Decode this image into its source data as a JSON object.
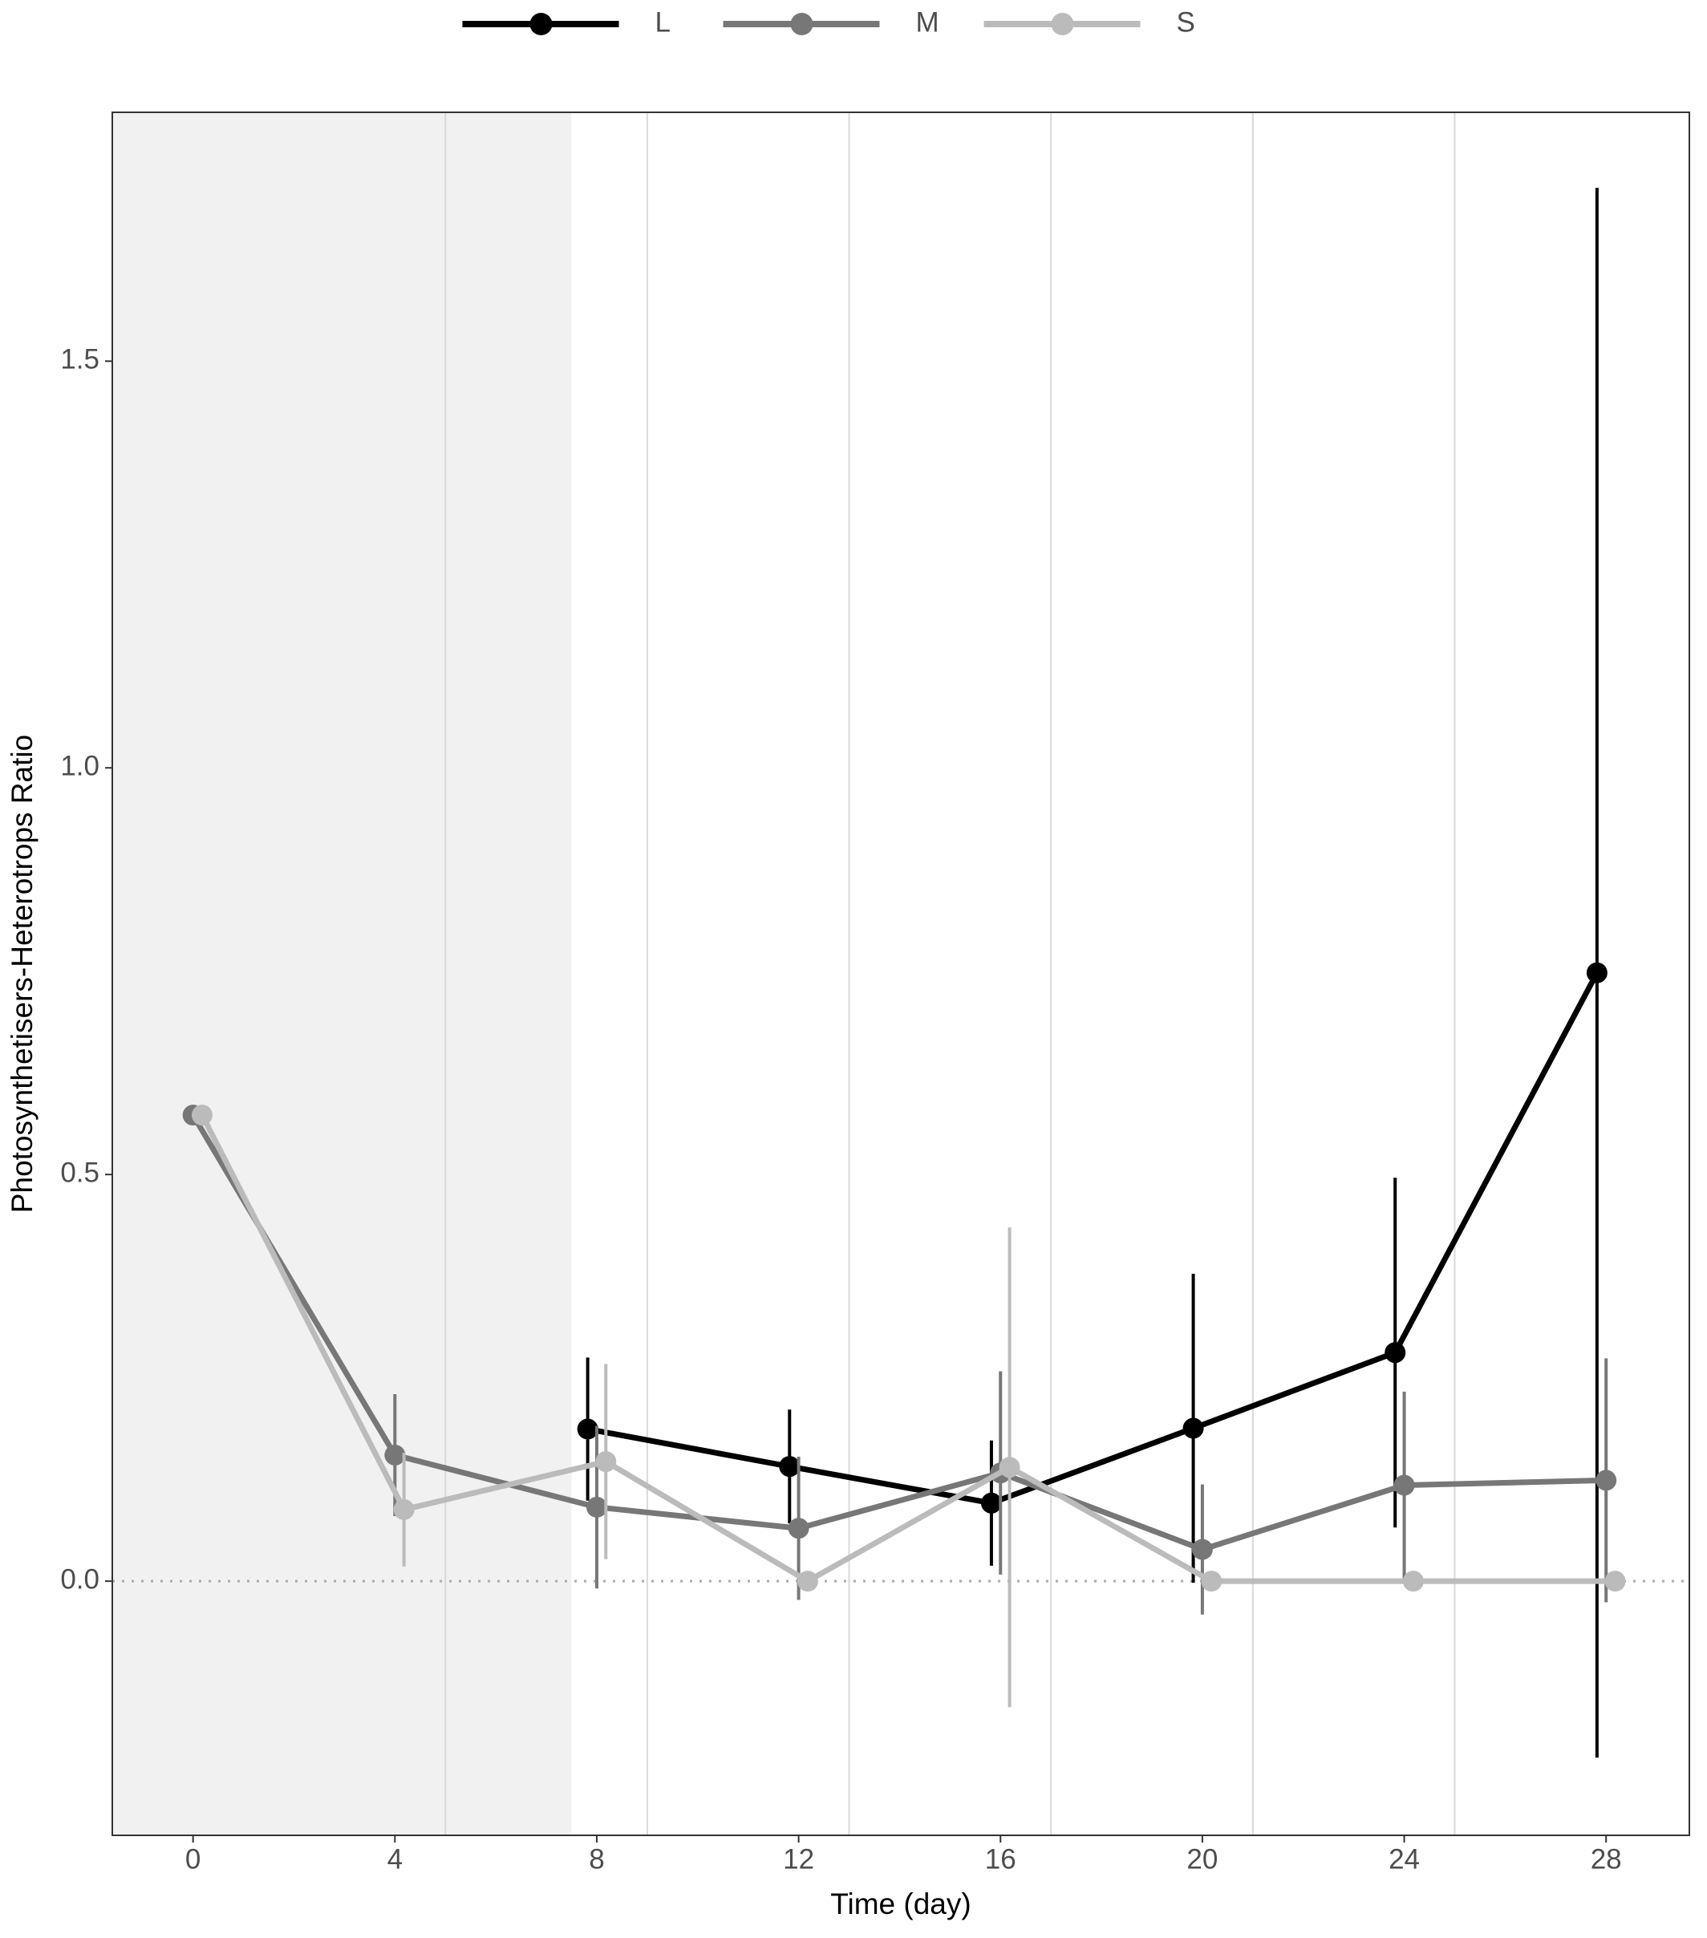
{
  "chart_data": {
    "type": "line",
    "x_label": "Time (day)",
    "y_label": "Photosynthetisers-Heterotrops Ratio",
    "x": [
      0,
      4,
      8,
      12,
      16,
      20,
      24,
      28
    ],
    "series": [
      {
        "name": "L",
        "color": "#000000",
        "values": [
          null,
          null,
          0.187,
          0.141,
          0.096,
          0.188,
          0.281,
          0.748
        ],
        "errors": [
          null,
          null,
          0.088,
          0.07,
          0.077,
          0.19,
          0.215,
          0.965
        ]
      },
      {
        "name": "M",
        "color": "#777777",
        "values": [
          0.573,
          0.155,
          0.091,
          0.065,
          0.133,
          0.039,
          0.118,
          0.124
        ],
        "errors": [
          null,
          0.075,
          0.1,
          0.088,
          0.125,
          0.08,
          0.115,
          0.15
        ]
      },
      {
        "name": "S",
        "color": "#bbbbbb",
        "values": [
          0.573,
          0.088,
          0.147,
          0,
          0.14,
          0,
          0,
          0
        ],
        "errors": [
          null,
          0.07,
          0.12,
          null,
          0.295,
          null,
          null,
          null
        ]
      }
    ],
    "xlim": [
      -1.6,
      29.65
    ],
    "ylim": [
      -0.3125,
      1.806
    ],
    "xticks": [
      0,
      4,
      8,
      12,
      16,
      20,
      24,
      28
    ],
    "yticks": [
      {
        "value": 0,
        "label": "0.0"
      },
      {
        "value": 0.5,
        "label": "0.5"
      },
      {
        "value": 1,
        "label": "1.0"
      },
      {
        "value": 1.5,
        "label": "1.5"
      }
    ],
    "vgrid": [
      5,
      9,
      13,
      17,
      21,
      25
    ],
    "shade_end": 7.5,
    "reference_line": 0,
    "legend": "top"
  }
}
